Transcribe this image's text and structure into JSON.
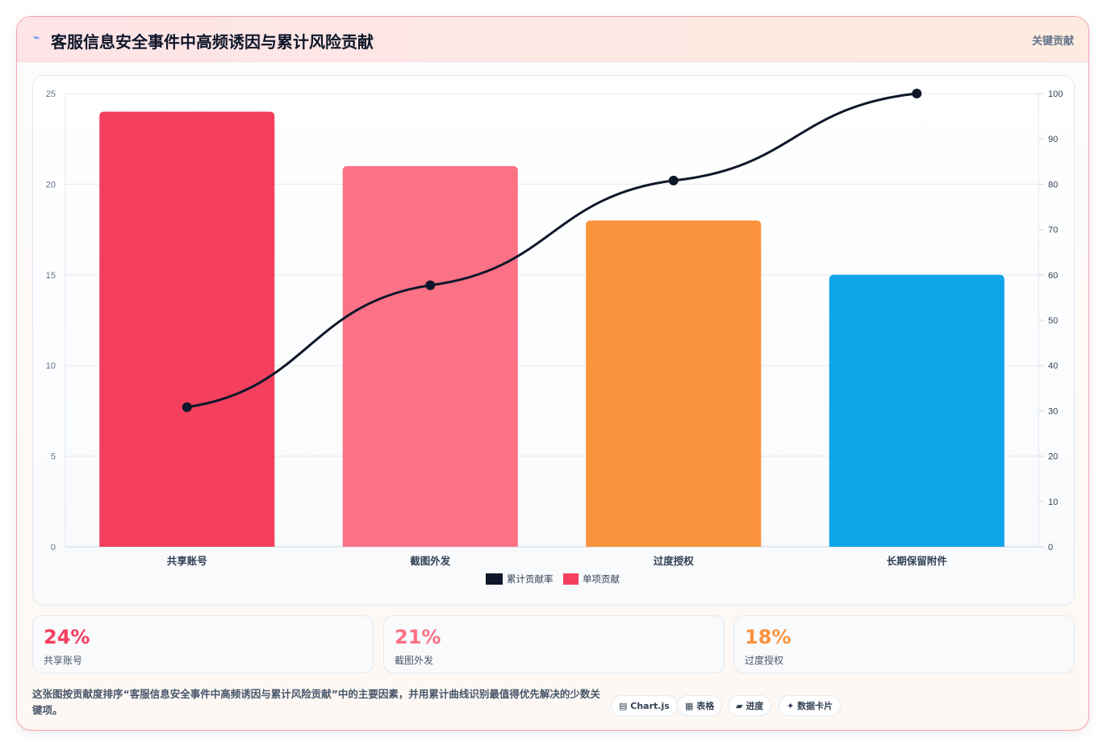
{
  "header": {
    "icon": "bolt-icon",
    "title": "客服信息安全事件中高频诱因与累计风险贡献",
    "badge": "关键贡献"
  },
  "colors": {
    "bars": [
      "#f43f5e",
      "#fb7185",
      "#fb923c",
      "#0ea5e9"
    ],
    "line": "#0f172a"
  },
  "chart_data": {
    "type": "bar",
    "categories": [
      "共享账号",
      "截图外发",
      "过度授权",
      "长期保留附件"
    ],
    "series": [
      {
        "name": "单项贡献",
        "type": "bar",
        "axis": "left",
        "values": [
          24,
          21,
          18,
          15
        ]
      },
      {
        "name": "累计贡献率",
        "type": "line",
        "axis": "right",
        "values": [
          30.8,
          57.7,
          80.8,
          100
        ]
      }
    ],
    "y_left": {
      "min": 0,
      "max": 25,
      "ticks": [
        0,
        5,
        10,
        15,
        20,
        25
      ]
    },
    "y_right": {
      "min": 0,
      "max": 100,
      "ticks": [
        0,
        10,
        20,
        30,
        40,
        50,
        60,
        70,
        80,
        90,
        100
      ]
    },
    "grid": true,
    "legend_position": "bottom"
  },
  "stats": [
    {
      "value": "24%",
      "label": "共享账号",
      "color": "#f43f5e"
    },
    {
      "value": "21%",
      "label": "截图外发",
      "color": "#fb7185"
    },
    {
      "value": "18%",
      "label": "过度授权",
      "color": "#fb923c"
    }
  ],
  "footer": {
    "description": "这张图按贡献度排序“客服信息安全事件中高频诱因与累计风险贡献”中的主要因素，并用累计曲线识别最值得优先解决的少数关键项。",
    "chips": [
      {
        "icon": "chart-icon",
        "glyph": "▤",
        "label": "Chart.js"
      },
      {
        "icon": "table-icon",
        "glyph": "▦",
        "label": "表格"
      },
      {
        "icon": "progress-icon",
        "glyph": "▰",
        "label": "进度"
      },
      {
        "icon": "sparkle-icon",
        "glyph": "✦",
        "label": "数据卡片"
      }
    ]
  }
}
